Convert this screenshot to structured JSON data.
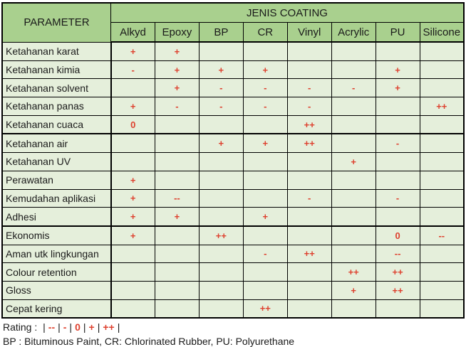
{
  "chart_data": {
    "type": "table",
    "param_header": "PARAMETER",
    "group_header": "JENIS COATING",
    "columns": [
      "Alkyd",
      "Epoxy",
      "BP",
      "CR",
      "Vinyl",
      "Acrylic",
      "PU",
      "Silicone"
    ],
    "rows": [
      {
        "label": "Ketahanan karat",
        "values": [
          "+",
          "+",
          "",
          "",
          "",
          "",
          "",
          ""
        ],
        "thick_bottom": false
      },
      {
        "label": "Ketahanan kimia",
        "values": [
          "-",
          "+",
          "+",
          "+",
          "",
          "",
          "+",
          ""
        ],
        "thick_bottom": false
      },
      {
        "label": "Ketahanan solvent",
        "values": [
          "",
          "+",
          "-",
          "-",
          "-",
          "-",
          "+",
          ""
        ],
        "thick_bottom": false
      },
      {
        "label": "Ketahanan panas",
        "values": [
          "+",
          "-",
          "-",
          "-",
          "-",
          "",
          "",
          "++"
        ],
        "thick_bottom": false
      },
      {
        "label": "Ketahanan cuaca",
        "values": [
          "0",
          "",
          "",
          "",
          "++",
          "",
          "",
          ""
        ],
        "thick_bottom": true
      },
      {
        "label": "Ketahanan air",
        "values": [
          "",
          "",
          "+",
          "+",
          "++",
          "",
          "-",
          ""
        ],
        "thick_bottom": false
      },
      {
        "label": "Ketahanan UV",
        "values": [
          "",
          "",
          "",
          "",
          "",
          "+",
          "",
          ""
        ],
        "thick_bottom": false
      },
      {
        "label": "Perawatan",
        "values": [
          "+",
          "",
          "",
          "",
          "",
          "",
          "",
          ""
        ],
        "thick_bottom": false
      },
      {
        "label": "Kemudahan aplikasi",
        "values": [
          "+",
          "--",
          "",
          "",
          "-",
          "",
          "-",
          ""
        ],
        "thick_bottom": false
      },
      {
        "label": "Adhesi",
        "values": [
          "+",
          "+",
          "",
          "+",
          "",
          "",
          "",
          ""
        ],
        "thick_bottom": true
      },
      {
        "label": "Ekonomis",
        "values": [
          "+",
          "",
          "++",
          "",
          "",
          "",
          "0",
          "--"
        ],
        "thick_bottom": false
      },
      {
        "label": "Aman utk lingkungan",
        "values": [
          "",
          "",
          "",
          "-",
          "++",
          "",
          "--",
          ""
        ],
        "thick_bottom": false
      },
      {
        "label": "Colour retention",
        "values": [
          "",
          "",
          "",
          "",
          "",
          "++",
          "++",
          ""
        ],
        "thick_bottom": false
      },
      {
        "label": "Gloss",
        "values": [
          "",
          "",
          "",
          "",
          "",
          "+",
          "++",
          ""
        ],
        "thick_bottom": false
      },
      {
        "label": "Cepat kering",
        "values": [
          "",
          "",
          "",
          "++",
          "",
          "",
          "",
          ""
        ],
        "thick_bottom": false
      }
    ]
  },
  "footer": {
    "rating_label": "Rating :",
    "rating_symbols": [
      "--",
      "-",
      "0",
      "+",
      "++"
    ],
    "abbreviations": "BP : Bituminous Paint, CR: Chlorinated Rubber, PU: Polyurethane"
  },
  "colors": {
    "header_green": "#A9D08E",
    "cell_green": "#E5EFDB",
    "rating_red": "#DE402E",
    "border": "#000000"
  }
}
